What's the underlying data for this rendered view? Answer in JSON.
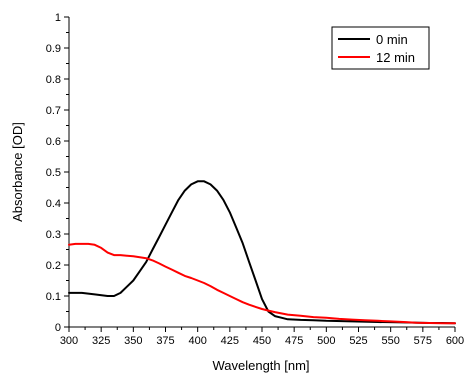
{
  "chart_data": {
    "type": "line",
    "title": "",
    "xlabel": "Wavelength [nm]",
    "ylabel": "Absorbance [OD]",
    "xlim": [
      300,
      600
    ],
    "ylim": [
      0,
      1
    ],
    "xticks": [
      "300",
      "325",
      "350",
      "375",
      "400",
      "425",
      "450",
      "475",
      "500",
      "525",
      "550",
      "575",
      "600"
    ],
    "yticks": [
      "0",
      "0.1",
      "0.2",
      "0.3",
      "0.4",
      "0.5",
      "0.6",
      "0.7",
      "0.8",
      "0.9",
      "1"
    ],
    "grid": false,
    "legend_position": "top-right",
    "series": [
      {
        "name": "0 min",
        "color": "#000000",
        "x": [
          300,
          310,
          320,
          330,
          335,
          340,
          345,
          350,
          355,
          360,
          365,
          370,
          375,
          380,
          385,
          390,
          395,
          400,
          405,
          410,
          415,
          420,
          425,
          430,
          435,
          440,
          445,
          450,
          455,
          460,
          465,
          470,
          480,
          490,
          500,
          520,
          540,
          560,
          580,
          590,
          600
        ],
        "y": [
          0.11,
          0.11,
          0.105,
          0.1,
          0.1,
          0.11,
          0.13,
          0.15,
          0.18,
          0.21,
          0.25,
          0.29,
          0.33,
          0.37,
          0.41,
          0.44,
          0.46,
          0.47,
          0.47,
          0.46,
          0.44,
          0.41,
          0.37,
          0.32,
          0.27,
          0.21,
          0.15,
          0.09,
          0.05,
          0.035,
          0.03,
          0.025,
          0.023,
          0.022,
          0.02,
          0.018,
          0.016,
          0.015,
          0.013,
          0.013,
          0.012
        ]
      },
      {
        "name": "12 min",
        "color": "#ff0000",
        "x": [
          300,
          305,
          310,
          315,
          320,
          325,
          330,
          335,
          340,
          345,
          350,
          355,
          360,
          365,
          370,
          375,
          380,
          385,
          390,
          395,
          400,
          405,
          410,
          415,
          420,
          425,
          430,
          435,
          440,
          445,
          450,
          455,
          460,
          465,
          470,
          480,
          490,
          500,
          510,
          520,
          530,
          540,
          550,
          560,
          570,
          580,
          590,
          600
        ],
        "y": [
          0.265,
          0.268,
          0.268,
          0.268,
          0.265,
          0.255,
          0.24,
          0.232,
          0.232,
          0.23,
          0.228,
          0.225,
          0.222,
          0.215,
          0.205,
          0.195,
          0.185,
          0.175,
          0.165,
          0.158,
          0.15,
          0.142,
          0.132,
          0.12,
          0.11,
          0.1,
          0.09,
          0.08,
          0.072,
          0.065,
          0.058,
          0.053,
          0.048,
          0.044,
          0.04,
          0.036,
          0.032,
          0.03,
          0.026,
          0.024,
          0.022,
          0.02,
          0.018,
          0.016,
          0.014,
          0.013,
          0.012,
          0.012
        ]
      }
    ]
  }
}
